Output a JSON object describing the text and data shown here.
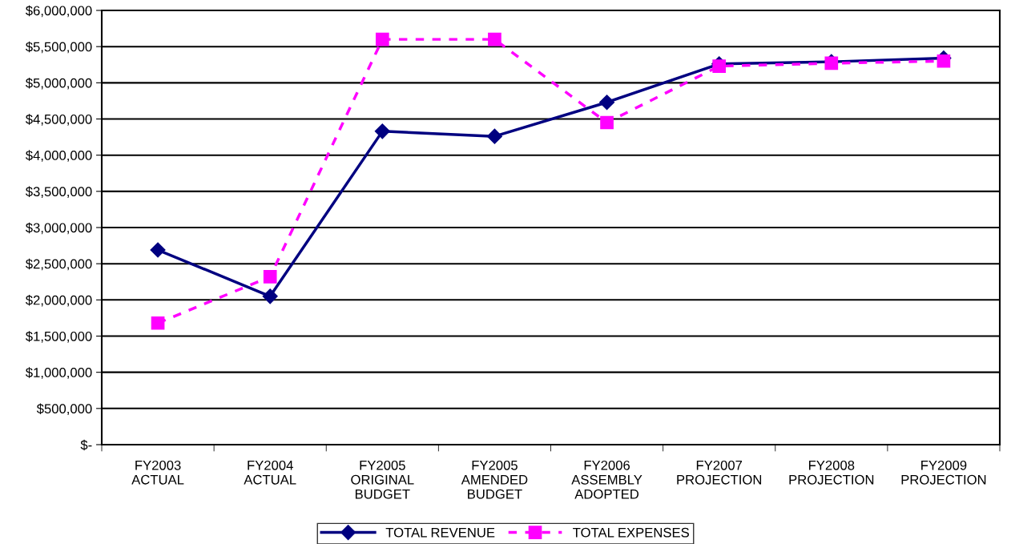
{
  "chart_data": {
    "type": "line",
    "categories": [
      "FY2003\nACTUAL",
      "FY2004\nACTUAL",
      "FY2005\nORIGINAL\nBUDGET",
      "FY2005\nAMENDED\nBUDGET",
      "FY2006\nASSEMBLY\nADOPTED",
      "FY2007\nPROJECTION",
      "FY2008\nPROJECTION",
      "FY2009\nPROJECTION"
    ],
    "series": [
      {
        "name": "TOTAL REVENUE",
        "color": "#000080",
        "marker": "diamond",
        "line_style": "solid",
        "values": [
          2690000,
          2050000,
          4330000,
          4260000,
          4730000,
          5260000,
          5290000,
          5340000
        ]
      },
      {
        "name": "TOTAL EXPENSES",
        "color": "#ff00ff",
        "marker": "square",
        "line_style": "dashed",
        "values": [
          1680000,
          2320000,
          5600000,
          5600000,
          4450000,
          5230000,
          5270000,
          5300000
        ]
      }
    ],
    "ylim": [
      0,
      6000000
    ],
    "yticks": [
      {
        "value": 0,
        "label": "$-"
      },
      {
        "value": 500000,
        "label": "$500,000"
      },
      {
        "value": 1000000,
        "label": "$1,000,000"
      },
      {
        "value": 1500000,
        "label": "$1,500,000"
      },
      {
        "value": 2000000,
        "label": "$2,000,000"
      },
      {
        "value": 2500000,
        "label": "$2,500,000"
      },
      {
        "value": 3000000,
        "label": "$3,000,000"
      },
      {
        "value": 3500000,
        "label": "$3,500,000"
      },
      {
        "value": 4000000,
        "label": "$4,000,000"
      },
      {
        "value": 4500000,
        "label": "$4,500,000"
      },
      {
        "value": 5000000,
        "label": "$5,000,000"
      },
      {
        "value": 5500000,
        "label": "$5,500,000"
      },
      {
        "value": 6000000,
        "label": "$6,000,000"
      }
    ],
    "grid": "y",
    "legend": "bottom"
  }
}
